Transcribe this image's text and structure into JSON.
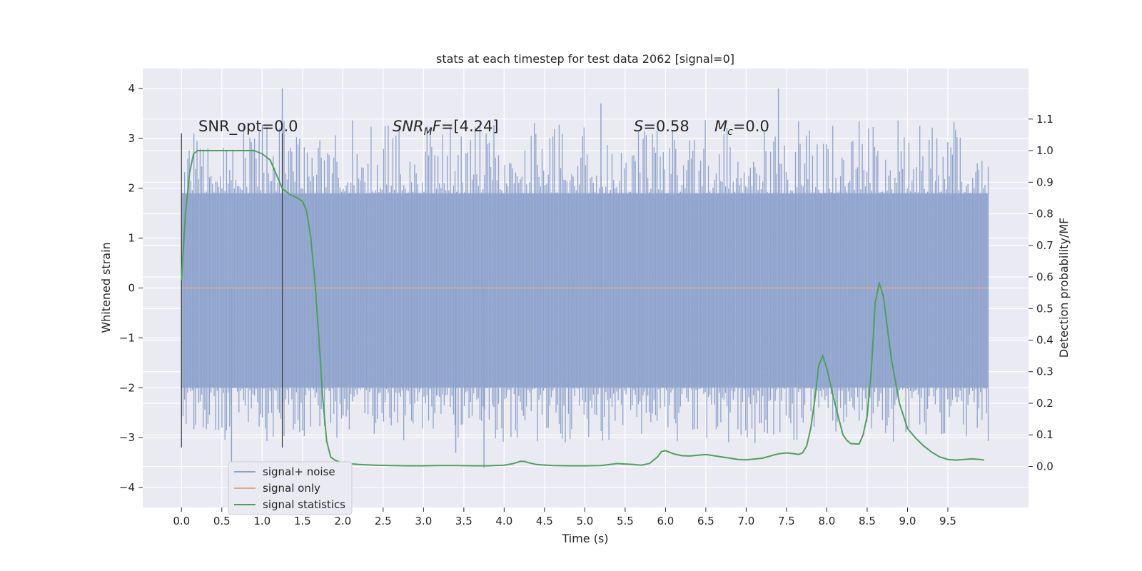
{
  "chart_data": {
    "type": "line",
    "title": "stats at each timestep for test data 2062 [signal=0]",
    "xlabel": "Time (s)",
    "ylabel": "Whitened strain",
    "y2label": "Detection probability/MF",
    "xlim": [
      -0.48,
      10.5
    ],
    "ylim": [
      -4.4,
      4.4
    ],
    "y2lim": [
      -0.13,
      1.26
    ],
    "x_ticks": [
      "0.0",
      "0.5",
      "1.0",
      "1.5",
      "2.0",
      "2.5",
      "3.0",
      "3.5",
      "4.0",
      "4.5",
      "5.0",
      "5.5",
      "6.0",
      "6.5",
      "7.0",
      "7.5",
      "8.0",
      "8.5",
      "9.0",
      "9.5"
    ],
    "y_ticks": [
      "4",
      "3",
      "2",
      "1",
      "0",
      "−1",
      "−2",
      "−3",
      "−4"
    ],
    "y2_ticks": [
      "1.1",
      "1.0",
      "0.9",
      "0.8",
      "0.7",
      "0.6",
      "0.5",
      "0.4",
      "0.3",
      "0.2",
      "0.1",
      "0.0"
    ],
    "grid": true,
    "legend_position": "lower-left",
    "annotations": {
      "snr_opt": "SNR_opt=0.0",
      "snr_mf": "=[4.24]",
      "snr_mf_label": "SNR",
      "snr_mf_sub": "M",
      "snr_mf_suffix": "F",
      "s_label": "S",
      "s_value": "=0.58",
      "mc_label": "M",
      "mc_sub": "c",
      "mc_value": "=0.0"
    },
    "vlines": [
      {
        "x": 0.0,
        "ymin": -3.2,
        "ymax": 3.1
      },
      {
        "x": 1.25,
        "ymin": -3.2,
        "ymax": 3.1
      }
    ],
    "series": [
      {
        "name": "signal+ noise",
        "color": "#8ea3cc",
        "x_start": 0.0,
        "x_end": 10.0,
        "band_ymin": -2.0,
        "band_ymax": 1.9,
        "spike_max": 4.0,
        "spike_min": -3.6
      },
      {
        "name": "signal only",
        "color": "#e3a98c",
        "x": [
          0.0,
          10.0
        ],
        "values": [
          0.0,
          0.0
        ]
      },
      {
        "name": "signal statistics",
        "color": "#4ca15a",
        "axis": "right",
        "x": [
          0.0,
          0.05,
          0.1,
          0.15,
          0.2,
          0.3,
          0.4,
          0.6,
          0.8,
          0.9,
          1.0,
          1.1,
          1.15,
          1.2,
          1.25,
          1.3,
          1.35,
          1.4,
          1.5,
          1.55,
          1.6,
          1.65,
          1.7,
          1.75,
          1.8,
          1.85,
          1.9,
          1.95,
          2.0,
          2.1,
          2.2,
          2.4,
          2.6,
          2.8,
          3.0,
          3.2,
          3.4,
          3.6,
          3.8,
          4.0,
          4.1,
          4.2,
          4.25,
          4.3,
          4.4,
          4.6,
          4.8,
          5.0,
          5.2,
          5.4,
          5.6,
          5.7,
          5.8,
          5.9,
          5.95,
          6.0,
          6.1,
          6.2,
          6.3,
          6.5,
          6.7,
          6.9,
          7.0,
          7.2,
          7.4,
          7.5,
          7.6,
          7.65,
          7.7,
          7.75,
          7.8,
          7.85,
          7.9,
          7.95,
          8.0,
          8.1,
          8.2,
          8.25,
          8.3,
          8.4,
          8.45,
          8.5,
          8.55,
          8.6,
          8.65,
          8.7,
          8.75,
          8.8,
          8.9,
          9.0,
          9.1,
          9.2,
          9.3,
          9.4,
          9.5,
          9.6,
          9.7,
          9.8,
          9.9,
          9.95
        ],
        "values": [
          0.59,
          0.8,
          0.93,
          0.99,
          1.0,
          1.0,
          1.0,
          1.0,
          1.0,
          1.0,
          0.99,
          0.97,
          0.94,
          0.91,
          0.88,
          0.87,
          0.86,
          0.855,
          0.84,
          0.81,
          0.73,
          0.6,
          0.42,
          0.22,
          0.08,
          0.03,
          0.02,
          0.015,
          0.01,
          0.008,
          0.006,
          0.004,
          0.003,
          0.002,
          0.002,
          0.003,
          0.003,
          0.002,
          0.002,
          0.004,
          0.008,
          0.016,
          0.016,
          0.012,
          0.006,
          0.003,
          0.002,
          0.002,
          0.003,
          0.009,
          0.006,
          0.004,
          0.009,
          0.03,
          0.047,
          0.05,
          0.04,
          0.034,
          0.033,
          0.038,
          0.03,
          0.022,
          0.021,
          0.026,
          0.04,
          0.043,
          0.04,
          0.038,
          0.043,
          0.065,
          0.12,
          0.21,
          0.32,
          0.35,
          0.31,
          0.2,
          0.1,
          0.082,
          0.072,
          0.071,
          0.1,
          0.16,
          0.3,
          0.52,
          0.58,
          0.54,
          0.44,
          0.34,
          0.2,
          0.12,
          0.09,
          0.065,
          0.045,
          0.03,
          0.022,
          0.02,
          0.022,
          0.024,
          0.022,
          0.02
        ]
      }
    ]
  }
}
